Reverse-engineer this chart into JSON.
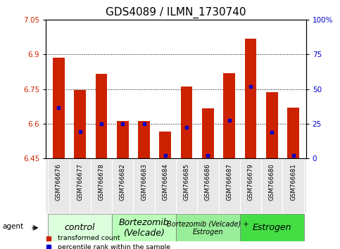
{
  "title": "GDS4089 / ILMN_1730740",
  "samples": [
    "GSM766676",
    "GSM766677",
    "GSM766678",
    "GSM766682",
    "GSM766683",
    "GSM766684",
    "GSM766685",
    "GSM766686",
    "GSM766687",
    "GSM766679",
    "GSM766680",
    "GSM766681"
  ],
  "bar_tops": [
    6.885,
    6.745,
    6.815,
    6.61,
    6.612,
    6.565,
    6.76,
    6.665,
    6.82,
    6.97,
    6.735,
    6.668
  ],
  "bar_base": 6.45,
  "blue_dot_values": [
    6.67,
    6.565,
    6.6,
    6.598,
    6.598,
    6.462,
    6.585,
    6.462,
    6.613,
    6.76,
    6.562,
    6.462
  ],
  "ylim_left": [
    6.45,
    7.05
  ],
  "ylim_right": [
    0,
    100
  ],
  "yticks_left": [
    6.45,
    6.6,
    6.75,
    6.9,
    7.05
  ],
  "ytick_labels_left": [
    "6.45",
    "6.6",
    "6.75",
    "6.9",
    "7.05"
  ],
  "yticks_right": [
    0,
    25,
    50,
    75,
    100
  ],
  "ytick_labels_right": [
    "0",
    "25",
    "50",
    "75",
    "100%"
  ],
  "grid_values": [
    6.6,
    6.75,
    6.9
  ],
  "bar_color": "#cc2200",
  "blue_dot_color": "#0000cc",
  "groups": [
    {
      "label": "control",
      "start": 0,
      "end": 3,
      "color": "#ddffdd",
      "fontsize": 9
    },
    {
      "label": "Bortezomib\n(Velcade)",
      "start": 3,
      "end": 6,
      "color": "#bbffbb",
      "fontsize": 9
    },
    {
      "label": "Bortezomib (Velcade) +\nEstrogen",
      "start": 6,
      "end": 9,
      "color": "#99ee99",
      "fontsize": 7
    },
    {
      "label": "Estrogen",
      "start": 9,
      "end": 12,
      "color": "#44dd44",
      "fontsize": 9
    }
  ],
  "legend_items": [
    {
      "label": "transformed count",
      "color": "#cc2200"
    },
    {
      "label": "percentile rank within the sample",
      "color": "#0000cc"
    }
  ],
  "agent_label": "agent",
  "ylabel_left_color": "#cc2200",
  "ylabel_right_color": "#0000cc",
  "bar_width": 0.55,
  "title_fontsize": 11,
  "tick_fontsize": 7.5,
  "group_label_color": "black"
}
